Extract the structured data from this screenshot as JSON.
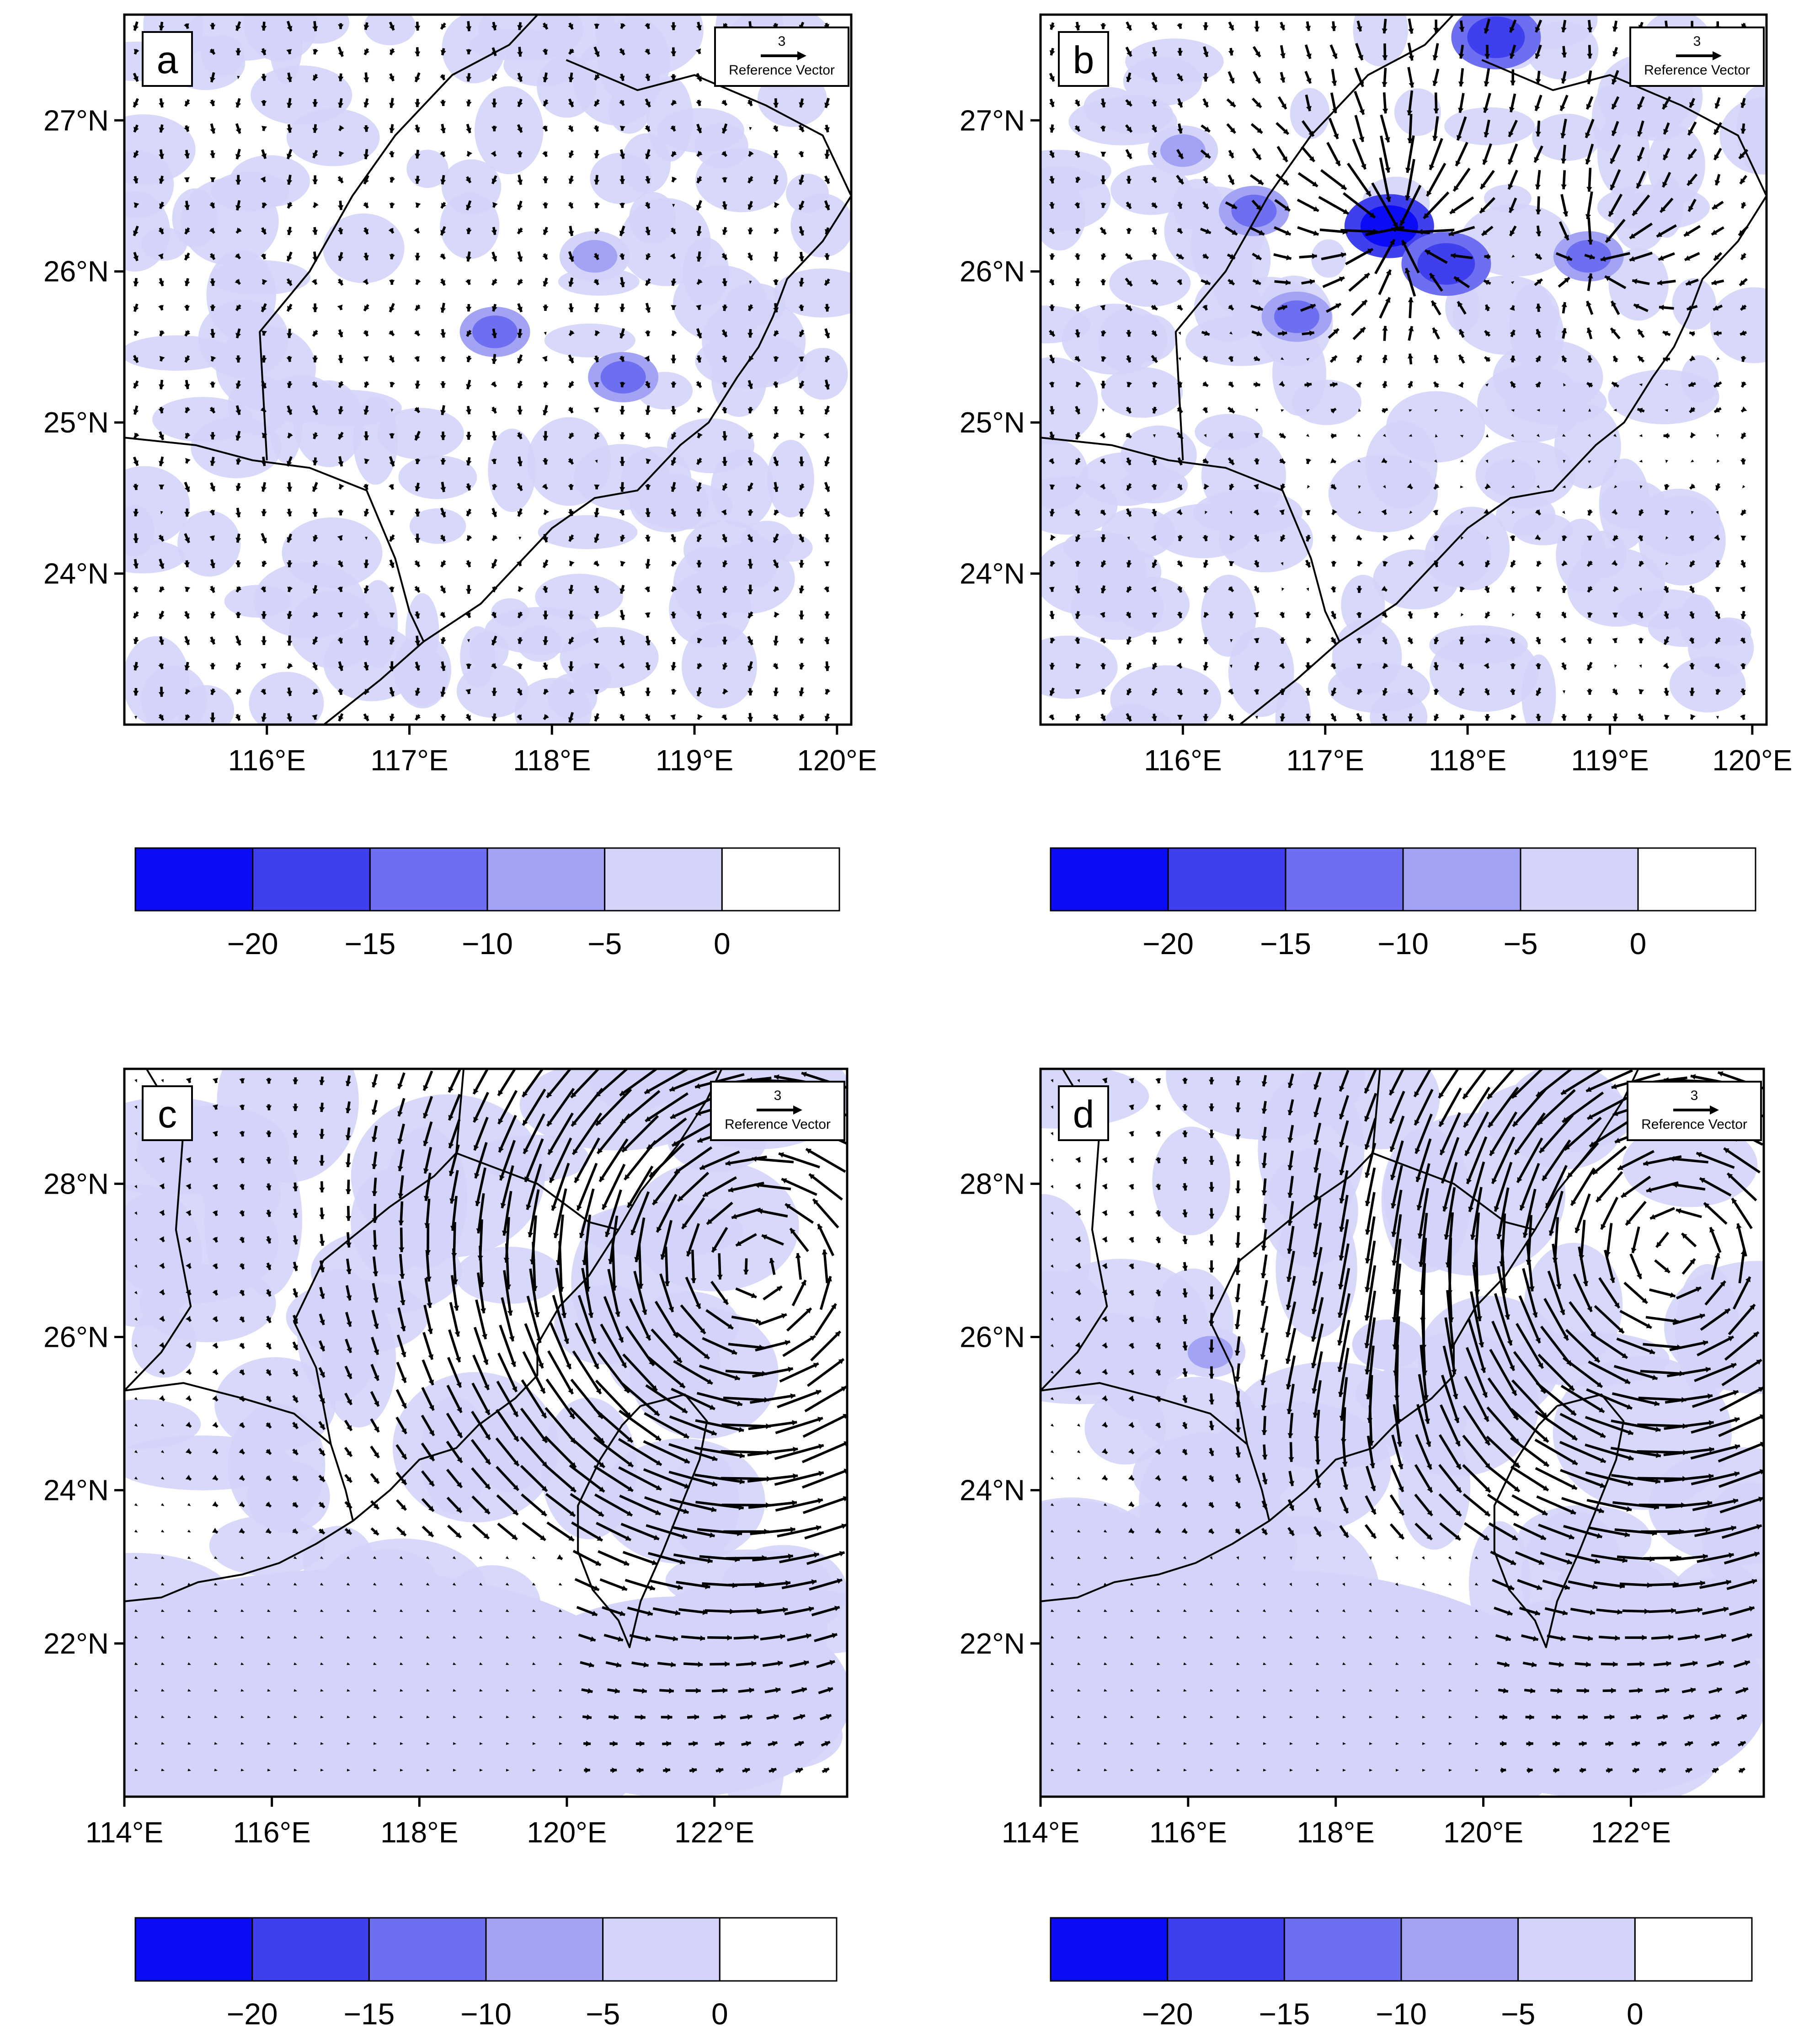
{
  "colors": {
    "shade_levels": [
      "#0b0bf5",
      "#3f3fee",
      "#6e6ef0",
      "#a3a3f5",
      "#d4d4fb",
      "#ffffff"
    ],
    "field_light": "#d4d4fb",
    "field_mid": "#a3a3f5",
    "field_dark": "#3f3fee",
    "field_core": "#0b0bf5",
    "line": "#000000"
  },
  "panels": [
    {
      "label": "a",
      "reference_vector": {
        "value": "3",
        "label": "Reference Vector"
      },
      "lon_range": [
        115.0,
        120.1
      ],
      "lat_range": [
        23.0,
        27.7
      ],
      "x_ticks": [
        {
          "lon": 116,
          "label": "116°E"
        },
        {
          "lon": 117,
          "label": "117°E"
        },
        {
          "lon": 118,
          "label": "118°E"
        },
        {
          "lon": 119,
          "label": "119°E"
        },
        {
          "lon": 120,
          "label": "120°E"
        }
      ],
      "y_ticks": [
        {
          "lat": 24,
          "label": "24°N"
        },
        {
          "lat": 25,
          "label": "25°N"
        },
        {
          "lat": 26,
          "label": "26°N"
        },
        {
          "lat": 27,
          "label": "27°N"
        }
      ],
      "wind_regime": "weak",
      "shade_blobs": [
        {
          "lon": 117.6,
          "lat": 25.6,
          "level": 2
        },
        {
          "lon": 118.5,
          "lat": 25.3,
          "level": 2
        },
        {
          "lon": 118.3,
          "lat": 26.1,
          "level": 3
        }
      ],
      "colorbar": {
        "ticks": [
          "−20",
          "−15",
          "−10",
          "−5",
          "0"
        ]
      }
    },
    {
      "label": "b",
      "reference_vector": {
        "value": "3",
        "label": "Reference Vector"
      },
      "lon_range": [
        115.0,
        120.1
      ],
      "lat_range": [
        23.0,
        27.7
      ],
      "x_ticks": [
        {
          "lon": 116,
          "label": "116°E"
        },
        {
          "lon": 117,
          "label": "117°E"
        },
        {
          "lon": 118,
          "label": "118°E"
        },
        {
          "lon": 119,
          "label": "119°E"
        },
        {
          "lon": 120,
          "label": "120°E"
        }
      ],
      "y_ticks": [
        {
          "lat": 24,
          "label": "24°N"
        },
        {
          "lat": 25,
          "label": "25°N"
        },
        {
          "lat": 26,
          "label": "26°N"
        },
        {
          "lat": 27,
          "label": "27°N"
        }
      ],
      "wind_regime": "convergence",
      "convergence_centers": [
        {
          "lon": 117.5,
          "lat": 26.3,
          "strength": 1.0
        },
        {
          "lon": 118.9,
          "lat": 26.1,
          "strength": 0.55
        }
      ],
      "shade_blobs": [
        {
          "lon": 117.45,
          "lat": 26.3,
          "level": 0
        },
        {
          "lon": 117.85,
          "lat": 26.05,
          "level": 1
        },
        {
          "lon": 118.85,
          "lat": 26.1,
          "level": 2
        },
        {
          "lon": 118.2,
          "lat": 27.55,
          "level": 1
        },
        {
          "lon": 116.5,
          "lat": 26.4,
          "level": 2
        },
        {
          "lon": 116.8,
          "lat": 25.7,
          "level": 2
        },
        {
          "lon": 116.0,
          "lat": 26.8,
          "level": 3
        }
      ],
      "colorbar": {
        "ticks": [
          "−20",
          "−15",
          "−10",
          "−5",
          "0"
        ]
      }
    },
    {
      "label": "c",
      "reference_vector": {
        "value": "3",
        "label": "Reference Vector"
      },
      "lon_range": [
        114.0,
        123.8
      ],
      "lat_range": [
        20.0,
        29.5
      ],
      "x_ticks": [
        {
          "lon": 114,
          "label": "114°E"
        },
        {
          "lon": 116,
          "label": "116°E"
        },
        {
          "lon": 118,
          "label": "118°E"
        },
        {
          "lon": 120,
          "label": "120°E"
        },
        {
          "lon": 122,
          "label": "122°E"
        }
      ],
      "y_ticks": [
        {
          "lat": 22,
          "label": "22°N"
        },
        {
          "lat": 24,
          "label": "24°N"
        },
        {
          "lat": 26,
          "label": "26°N"
        },
        {
          "lat": 28,
          "label": "28°N"
        }
      ],
      "wind_regime": "typhoon",
      "typhoon_center": {
        "lon": 122.6,
        "lat": 26.9
      },
      "shade_blobs": [],
      "colorbar": {
        "ticks": [
          "−20",
          "−15",
          "−10",
          "−5",
          "0"
        ]
      }
    },
    {
      "label": "d",
      "reference_vector": {
        "value": "3",
        "label": "Reference Vector"
      },
      "lon_range": [
        114.0,
        123.8
      ],
      "lat_range": [
        20.0,
        29.5
      ],
      "x_ticks": [
        {
          "lon": 114,
          "label": "114°E"
        },
        {
          "lon": 116,
          "label": "116°E"
        },
        {
          "lon": 118,
          "label": "118°E"
        },
        {
          "lon": 120,
          "label": "120°E"
        },
        {
          "lon": 122,
          "label": "122°E"
        }
      ],
      "y_ticks": [
        {
          "lat": 22,
          "label": "22°N"
        },
        {
          "lat": 24,
          "label": "24°N"
        },
        {
          "lat": 26,
          "label": "26°N"
        },
        {
          "lat": 28,
          "label": "28°N"
        }
      ],
      "wind_regime": "typhoon_strong",
      "typhoon_center": {
        "lon": 122.6,
        "lat": 27.1
      },
      "shade_blobs": [
        {
          "lon": 116.3,
          "lat": 25.8,
          "level": 3
        },
        {
          "lon": 118.7,
          "lat": 25.9,
          "level": 4
        }
      ],
      "colorbar": {
        "ticks": [
          "−20",
          "−15",
          "−10",
          "−5",
          "0"
        ]
      }
    }
  ],
  "chart_data": [
    {
      "type": "heatmap",
      "panel": "a",
      "x_range": [
        115.0,
        120.1
      ],
      "y_range": [
        23.0,
        27.7
      ],
      "xlabel": "",
      "ylabel": "",
      "overlay": "wind vectors (weak, mostly calm)",
      "color_levels": [
        -25,
        -20,
        -15,
        -10,
        -5,
        0,
        5
      ],
      "colorbar_ticks": [
        -20,
        -15,
        -10,
        -5,
        0
      ],
      "reference_vector": 3
    },
    {
      "type": "heatmap",
      "panel": "b",
      "x_range": [
        115.0,
        120.1
      ],
      "y_range": [
        23.0,
        27.7
      ],
      "xlabel": "",
      "ylabel": "",
      "overlay": "wind vectors (convergence near 117.5°E, 26.3°N)",
      "color_levels": [
        -25,
        -20,
        -15,
        -10,
        -5,
        0,
        5
      ],
      "colorbar_ticks": [
        -20,
        -15,
        -10,
        -5,
        0
      ],
      "reference_vector": 3
    },
    {
      "type": "heatmap",
      "panel": "c",
      "x_range": [
        114.0,
        123.8
      ],
      "y_range": [
        20.0,
        29.5
      ],
      "xlabel": "",
      "ylabel": "",
      "overlay": "wind vectors (cyclonic circulation near 122.6°E, 26.9°N)",
      "color_levels": [
        -25,
        -20,
        -15,
        -10,
        -5,
        0,
        5
      ],
      "colorbar_ticks": [
        -20,
        -15,
        -10,
        -5,
        0
      ],
      "reference_vector": 3
    },
    {
      "type": "heatmap",
      "panel": "d",
      "x_range": [
        114.0,
        123.8
      ],
      "y_range": [
        20.0,
        29.5
      ],
      "xlabel": "",
      "ylabel": "",
      "overlay": "wind vectors (cyclonic circulation near 122.6°E, 27.1°N, strong inflow over 117–120°E)",
      "color_levels": [
        -25,
        -20,
        -15,
        -10,
        -5,
        0,
        5
      ],
      "colorbar_ticks": [
        -20,
        -15,
        -10,
        -5,
        0
      ],
      "reference_vector": 3
    }
  ]
}
